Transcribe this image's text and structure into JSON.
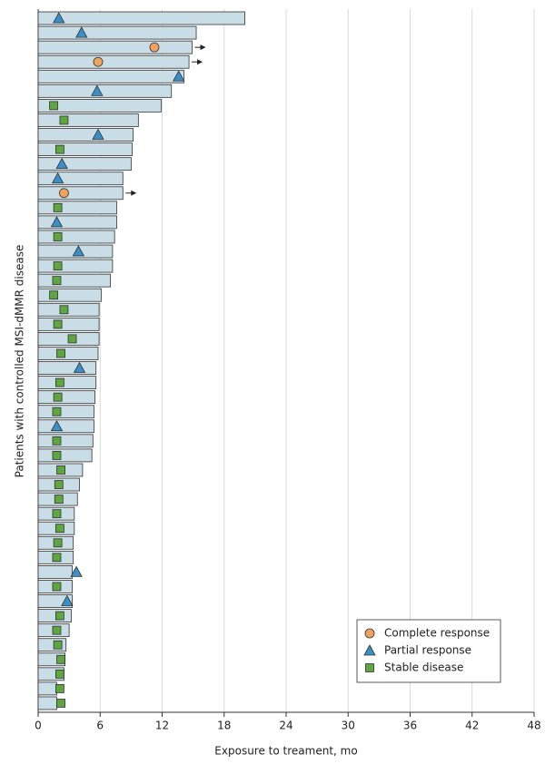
{
  "chart_data": {
    "type": "swimmer",
    "xlabel": "Exposure to treament, mo",
    "ylabel": "Patients with controlled MSI-dMMR disease",
    "xlim": [
      0,
      48
    ],
    "xticks": [
      0,
      6,
      12,
      18,
      24,
      30,
      36,
      42,
      48
    ],
    "grid": true,
    "legend": "lower right",
    "bar_color": "#c8dde6",
    "durations": [
      20.0,
      15.3,
      14.9,
      14.6,
      14.1,
      12.9,
      11.9,
      9.7,
      9.2,
      9.1,
      9.0,
      8.2,
      8.2,
      7.6,
      7.6,
      7.4,
      7.2,
      7.2,
      7.0,
      6.1,
      5.9,
      5.9,
      5.9,
      5.8,
      5.6,
      5.6,
      5.5,
      5.4,
      5.4,
      5.3,
      5.2,
      4.3,
      4.0,
      3.8,
      3.5,
      3.5,
      3.4,
      3.4,
      3.3,
      3.3,
      3.3,
      3.2,
      3.0,
      2.7,
      2.6,
      2.5,
      1.8,
      1.8
    ],
    "ongoing": [
      false,
      false,
      true,
      true,
      false,
      false,
      false,
      false,
      false,
      false,
      false,
      false,
      true,
      false,
      false,
      false,
      false,
      false,
      false,
      false,
      false,
      false,
      false,
      false,
      false,
      false,
      false,
      false,
      false,
      false,
      false,
      false,
      false,
      false,
      false,
      false,
      false,
      false,
      false,
      false,
      false,
      false,
      false,
      false,
      false,
      false,
      false,
      false
    ],
    "series": [
      {
        "name": "Complete response",
        "color": "#f0a35e",
        "marker": "circle",
        "values": [
          null,
          null,
          11.25,
          5.8,
          null,
          null,
          null,
          null,
          null,
          null,
          null,
          null,
          2.5,
          null,
          null,
          null,
          null,
          null,
          null,
          null,
          null,
          null,
          null,
          null,
          null,
          null,
          null,
          null,
          null,
          null,
          null,
          null,
          null,
          null,
          null,
          null,
          null,
          null,
          null,
          null,
          null,
          null,
          null,
          null,
          null,
          null,
          null,
          null
        ]
      },
      {
        "name": "Partial response",
        "color": "#3a8fc7",
        "marker": "triangle",
        "values": [
          2.0,
          4.2,
          null,
          null,
          13.6,
          5.7,
          null,
          null,
          5.8,
          null,
          2.3,
          1.9,
          null,
          null,
          1.8,
          null,
          3.9,
          null,
          null,
          null,
          null,
          null,
          null,
          null,
          4.0,
          null,
          null,
          null,
          1.8,
          null,
          null,
          null,
          null,
          null,
          null,
          null,
          null,
          null,
          3.7,
          null,
          2.8,
          null,
          null,
          null,
          null,
          null,
          null,
          null
        ]
      },
      {
        "name": "Stable disease",
        "color": "#5fa641",
        "marker": "square",
        "values": [
          null,
          null,
          null,
          null,
          null,
          null,
          1.5,
          2.5,
          null,
          2.1,
          null,
          null,
          null,
          1.9,
          null,
          1.9,
          null,
          1.9,
          1.8,
          1.5,
          2.5,
          1.9,
          3.3,
          2.2,
          null,
          2.1,
          1.9,
          1.8,
          null,
          1.8,
          1.8,
          2.2,
          2.0,
          2.0,
          1.8,
          2.1,
          1.9,
          1.8,
          null,
          1.8,
          null,
          2.1,
          1.8,
          1.9,
          2.2,
          2.1,
          2.1,
          2.2
        ]
      }
    ]
  }
}
